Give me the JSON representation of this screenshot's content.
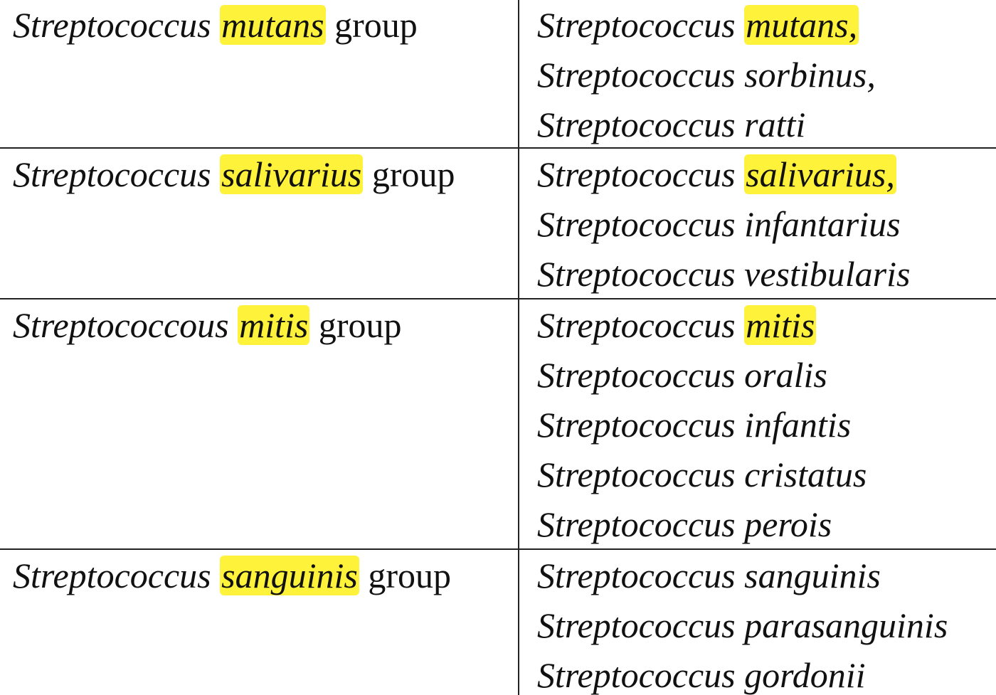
{
  "highlight_color": "#fff23a",
  "rows": [
    {
      "group": {
        "genus": "Streptococcus",
        "species": "mutans",
        "suffix": "group"
      },
      "members": [
        {
          "genus": "Streptococcus",
          "species": "mutans,",
          "highlighted": true
        },
        {
          "genus": "Streptococcus",
          "species": "sorbinus,",
          "highlighted": false
        },
        {
          "genus": "Streptococcus",
          "species": "ratti",
          "highlighted": false
        }
      ]
    },
    {
      "group": {
        "genus": "Streptococcus",
        "species": "salivarius",
        "suffix": "group"
      },
      "members": [
        {
          "genus": "Streptococcus",
          "species": "salivarius,",
          "highlighted": true
        },
        {
          "genus": "Streptococcus",
          "species": "infantarius",
          "highlighted": false
        },
        {
          "genus": "Streptococcus",
          "species": "vestibularis",
          "highlighted": false
        }
      ]
    },
    {
      "group": {
        "genus": "Streptococcous",
        "species": "mitis",
        "suffix": "group"
      },
      "members": [
        {
          "genus": "Streptococcus",
          "species": "mitis",
          "highlighted": true
        },
        {
          "genus": "Streptococcus",
          "species": "oralis",
          "highlighted": false
        },
        {
          "genus": "Streptococcus",
          "species": "infantis",
          "highlighted": false
        },
        {
          "genus": "Streptococcus",
          "species": "cristatus",
          "highlighted": false
        },
        {
          "genus": "Streptococcus",
          "species": "perois",
          "highlighted": false
        }
      ]
    },
    {
      "group": {
        "genus": "Streptococcus",
        "species": "sanguinis",
        "suffix": "group"
      },
      "members": [
        {
          "genus": "Streptococcus",
          "species": "sanguinis",
          "highlighted": false
        },
        {
          "genus": "Streptococcus",
          "species": "parasanguinis",
          "highlighted": false
        },
        {
          "genus": "Streptococcus",
          "species": "gordonii",
          "highlighted": false
        }
      ]
    }
  ]
}
